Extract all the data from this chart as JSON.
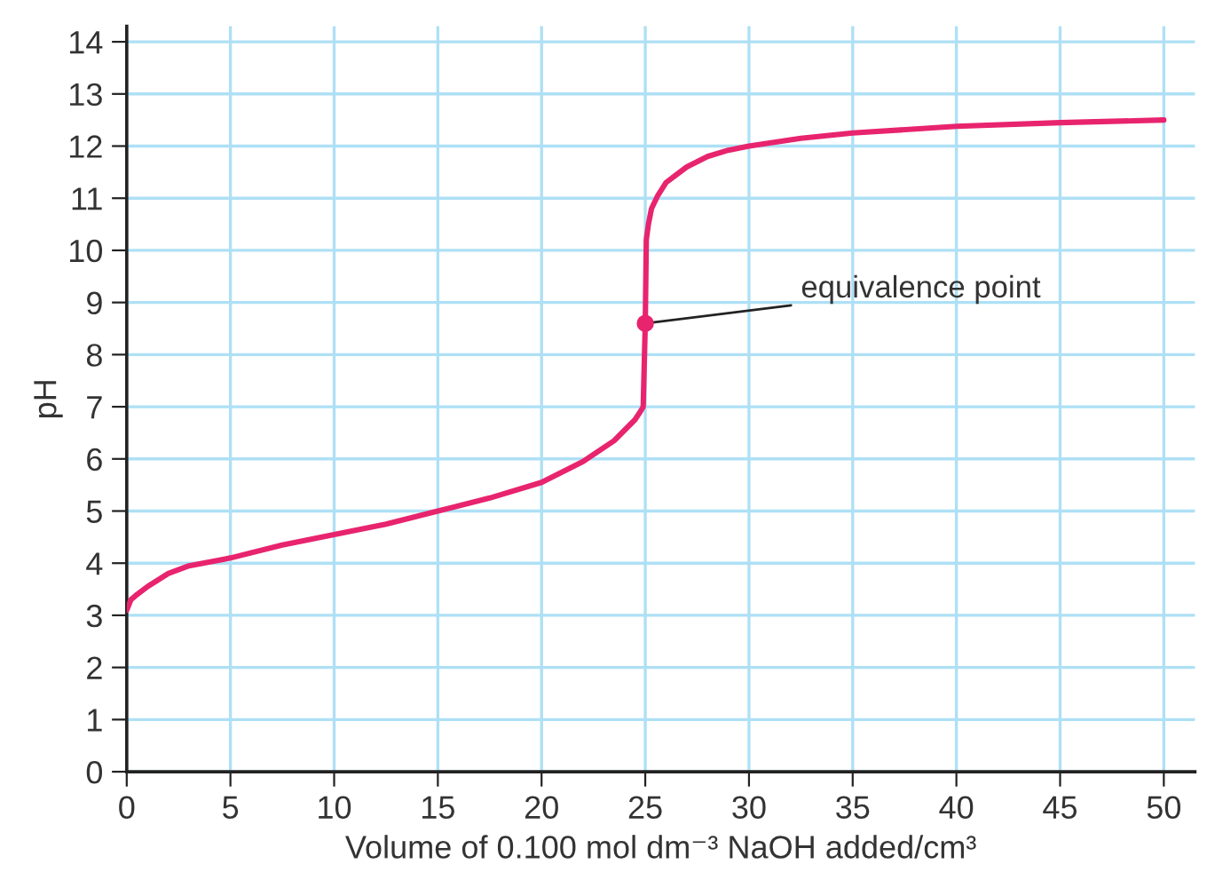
{
  "chart_data": {
    "type": "line",
    "xlabel": "Volume of 0.100 mol dm⁻³ NaOH added/cm³",
    "ylabel": "pH",
    "xlim": [
      0,
      51.5
    ],
    "ylim": [
      0,
      14.3
    ],
    "xticks": [
      0,
      5,
      10,
      15,
      20,
      25,
      30,
      35,
      40,
      45,
      50
    ],
    "yticks": [
      0,
      1,
      2,
      3,
      4,
      5,
      6,
      7,
      8,
      9,
      10,
      11,
      12,
      13,
      14
    ],
    "grid": true,
    "line_style": "solid",
    "series": [
      {
        "color": "#e8246e",
        "marker": "none",
        "x": [
          0,
          0.2,
          0.5,
          1,
          2,
          3,
          5,
          7.5,
          10,
          12.5,
          15,
          17.5,
          20,
          22,
          23.5,
          24.5,
          24.75,
          24.9,
          25,
          25.05,
          25.15,
          25.3,
          25.6,
          26,
          26.5,
          27,
          28,
          29,
          30,
          32.5,
          35,
          40,
          45,
          50
        ],
        "values": [
          3.1,
          3.3,
          3.4,
          3.55,
          3.8,
          3.95,
          4.1,
          4.35,
          4.55,
          4.75,
          5.0,
          5.25,
          5.55,
          5.95,
          6.35,
          6.75,
          6.9,
          7.0,
          8.6,
          10.2,
          10.5,
          10.8,
          11.05,
          11.3,
          11.45,
          11.6,
          11.8,
          11.92,
          12.0,
          12.15,
          12.25,
          12.38,
          12.45,
          12.5
        ]
      },
      {
        "type": "scatter",
        "color": "#e8246e",
        "marker": "circle",
        "x": [
          25
        ],
        "values": [
          8.6
        ]
      }
    ],
    "annotations": [
      {
        "text": "equivalence point",
        "x": 25,
        "y": 8.6
      }
    ]
  }
}
